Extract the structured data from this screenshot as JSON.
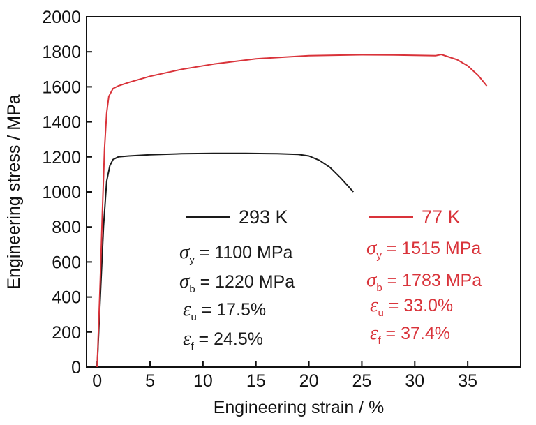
{
  "chart_data": {
    "type": "line",
    "title": "",
    "xlabel": "Engineering strain / %",
    "ylabel": "Engineering stress / MPa",
    "xlim": [
      -1,
      40
    ],
    "ylim": [
      0,
      2000
    ],
    "x_ticks": [
      0,
      5,
      10,
      15,
      20,
      25,
      30,
      35
    ],
    "y_ticks": [
      0,
      200,
      400,
      600,
      800,
      1000,
      1200,
      1400,
      1600,
      1800,
      2000
    ],
    "grid": false,
    "legend_position": "inside-lower-center",
    "series": [
      {
        "name": "293 K",
        "color": "#1a1a1a",
        "x": [
          0,
          0.3,
          0.6,
          0.9,
          1.2,
          1.5,
          2,
          3,
          5,
          8,
          11,
          14,
          17,
          19,
          20,
          21,
          22,
          23,
          24.2
        ],
        "y": [
          0,
          400,
          800,
          1060,
          1150,
          1185,
          1200,
          1205,
          1212,
          1218,
          1220,
          1220,
          1218,
          1214,
          1205,
          1180,
          1140,
          1080,
          1000
        ]
      },
      {
        "name": "77 K",
        "color": "#d9333a",
        "x": [
          0,
          0.3,
          0.5,
          0.7,
          0.9,
          1.1,
          1.5,
          2,
          3,
          5,
          8,
          11,
          15,
          20,
          25,
          28,
          32,
          32.5,
          33,
          34,
          35,
          36,
          36.8
        ],
        "y": [
          0,
          500,
          900,
          1250,
          1450,
          1545,
          1590,
          1605,
          1625,
          1660,
          1700,
          1730,
          1760,
          1778,
          1783,
          1782,
          1778,
          1785,
          1775,
          1755,
          1720,
          1665,
          1605
        ]
      }
    ],
    "annotations": {
      "293K": [
        {
          "sym": "σ",
          "sub": "y",
          "rest": " = 1100 MPa"
        },
        {
          "sym": "σ",
          "sub": "b",
          "rest": " = 1220 MPa"
        },
        {
          "sym": "ε",
          "sub": "u",
          "rest": " = 17.5%"
        },
        {
          "sym": "ε",
          "sub": "f",
          "rest": " = 24.5%"
        }
      ],
      "77K": [
        {
          "sym": "σ",
          "sub": "y",
          "rest": " = 1515 MPa"
        },
        {
          "sym": "σ",
          "sub": "b",
          "rest": " = 1783 MPa"
        },
        {
          "sym": "ε",
          "sub": "u",
          "rest": " = 33.0%"
        },
        {
          "sym": "ε",
          "sub": "f",
          "rest": " = 37.4%"
        }
      ]
    }
  }
}
